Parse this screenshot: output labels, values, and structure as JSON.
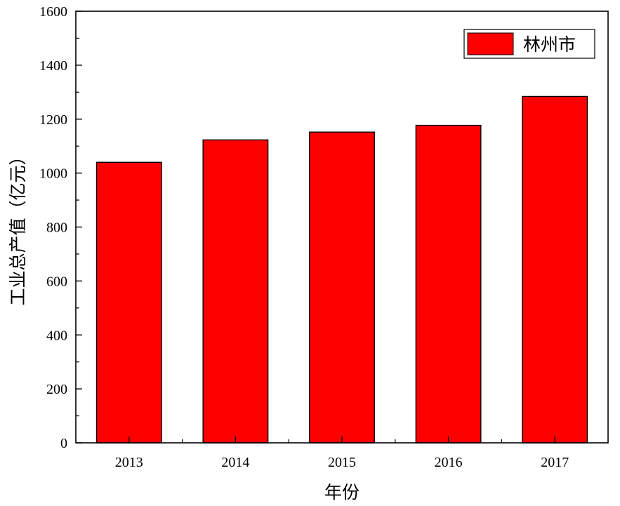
{
  "chart_data": {
    "type": "bar",
    "categories": [
      "2013",
      "2014",
      "2015",
      "2016",
      "2017"
    ],
    "series": [
      {
        "name": "林州市",
        "values": [
          1040,
          1123,
          1152,
          1177,
          1284
        ],
        "color": "#ff0000"
      }
    ],
    "title": "",
    "xlabel": "年份",
    "ylabel": "工业总产值（亿元）",
    "ylim": [
      0,
      1600
    ],
    "yticks": [
      0,
      200,
      400,
      600,
      800,
      1000,
      1200,
      1400,
      1600
    ],
    "grid": false,
    "legend_position": "top-right"
  }
}
